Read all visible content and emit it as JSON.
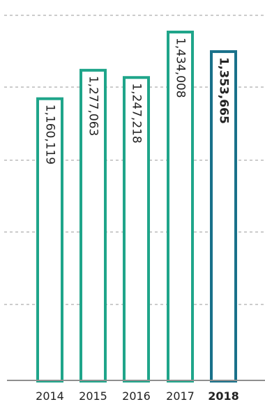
{
  "chart_data": {
    "type": "bar",
    "categories": [
      "2014",
      "2015",
      "2016",
      "2017",
      "2018"
    ],
    "values": [
      1160119,
      1277063,
      1247218,
      1434008,
      1353665
    ],
    "value_labels": [
      "1,160,119",
      "1,277,063",
      "1,247,218",
      "1,434,008",
      "1,353,665"
    ],
    "highlight_index": 4,
    "ylim": [
      0,
      1434008
    ],
    "grid": true,
    "colors": {
      "bar": "#1fa58a",
      "highlight": "#19718a",
      "text": "#222222",
      "grid": "#9a9a9a",
      "axis": "#8f8f8f"
    }
  }
}
